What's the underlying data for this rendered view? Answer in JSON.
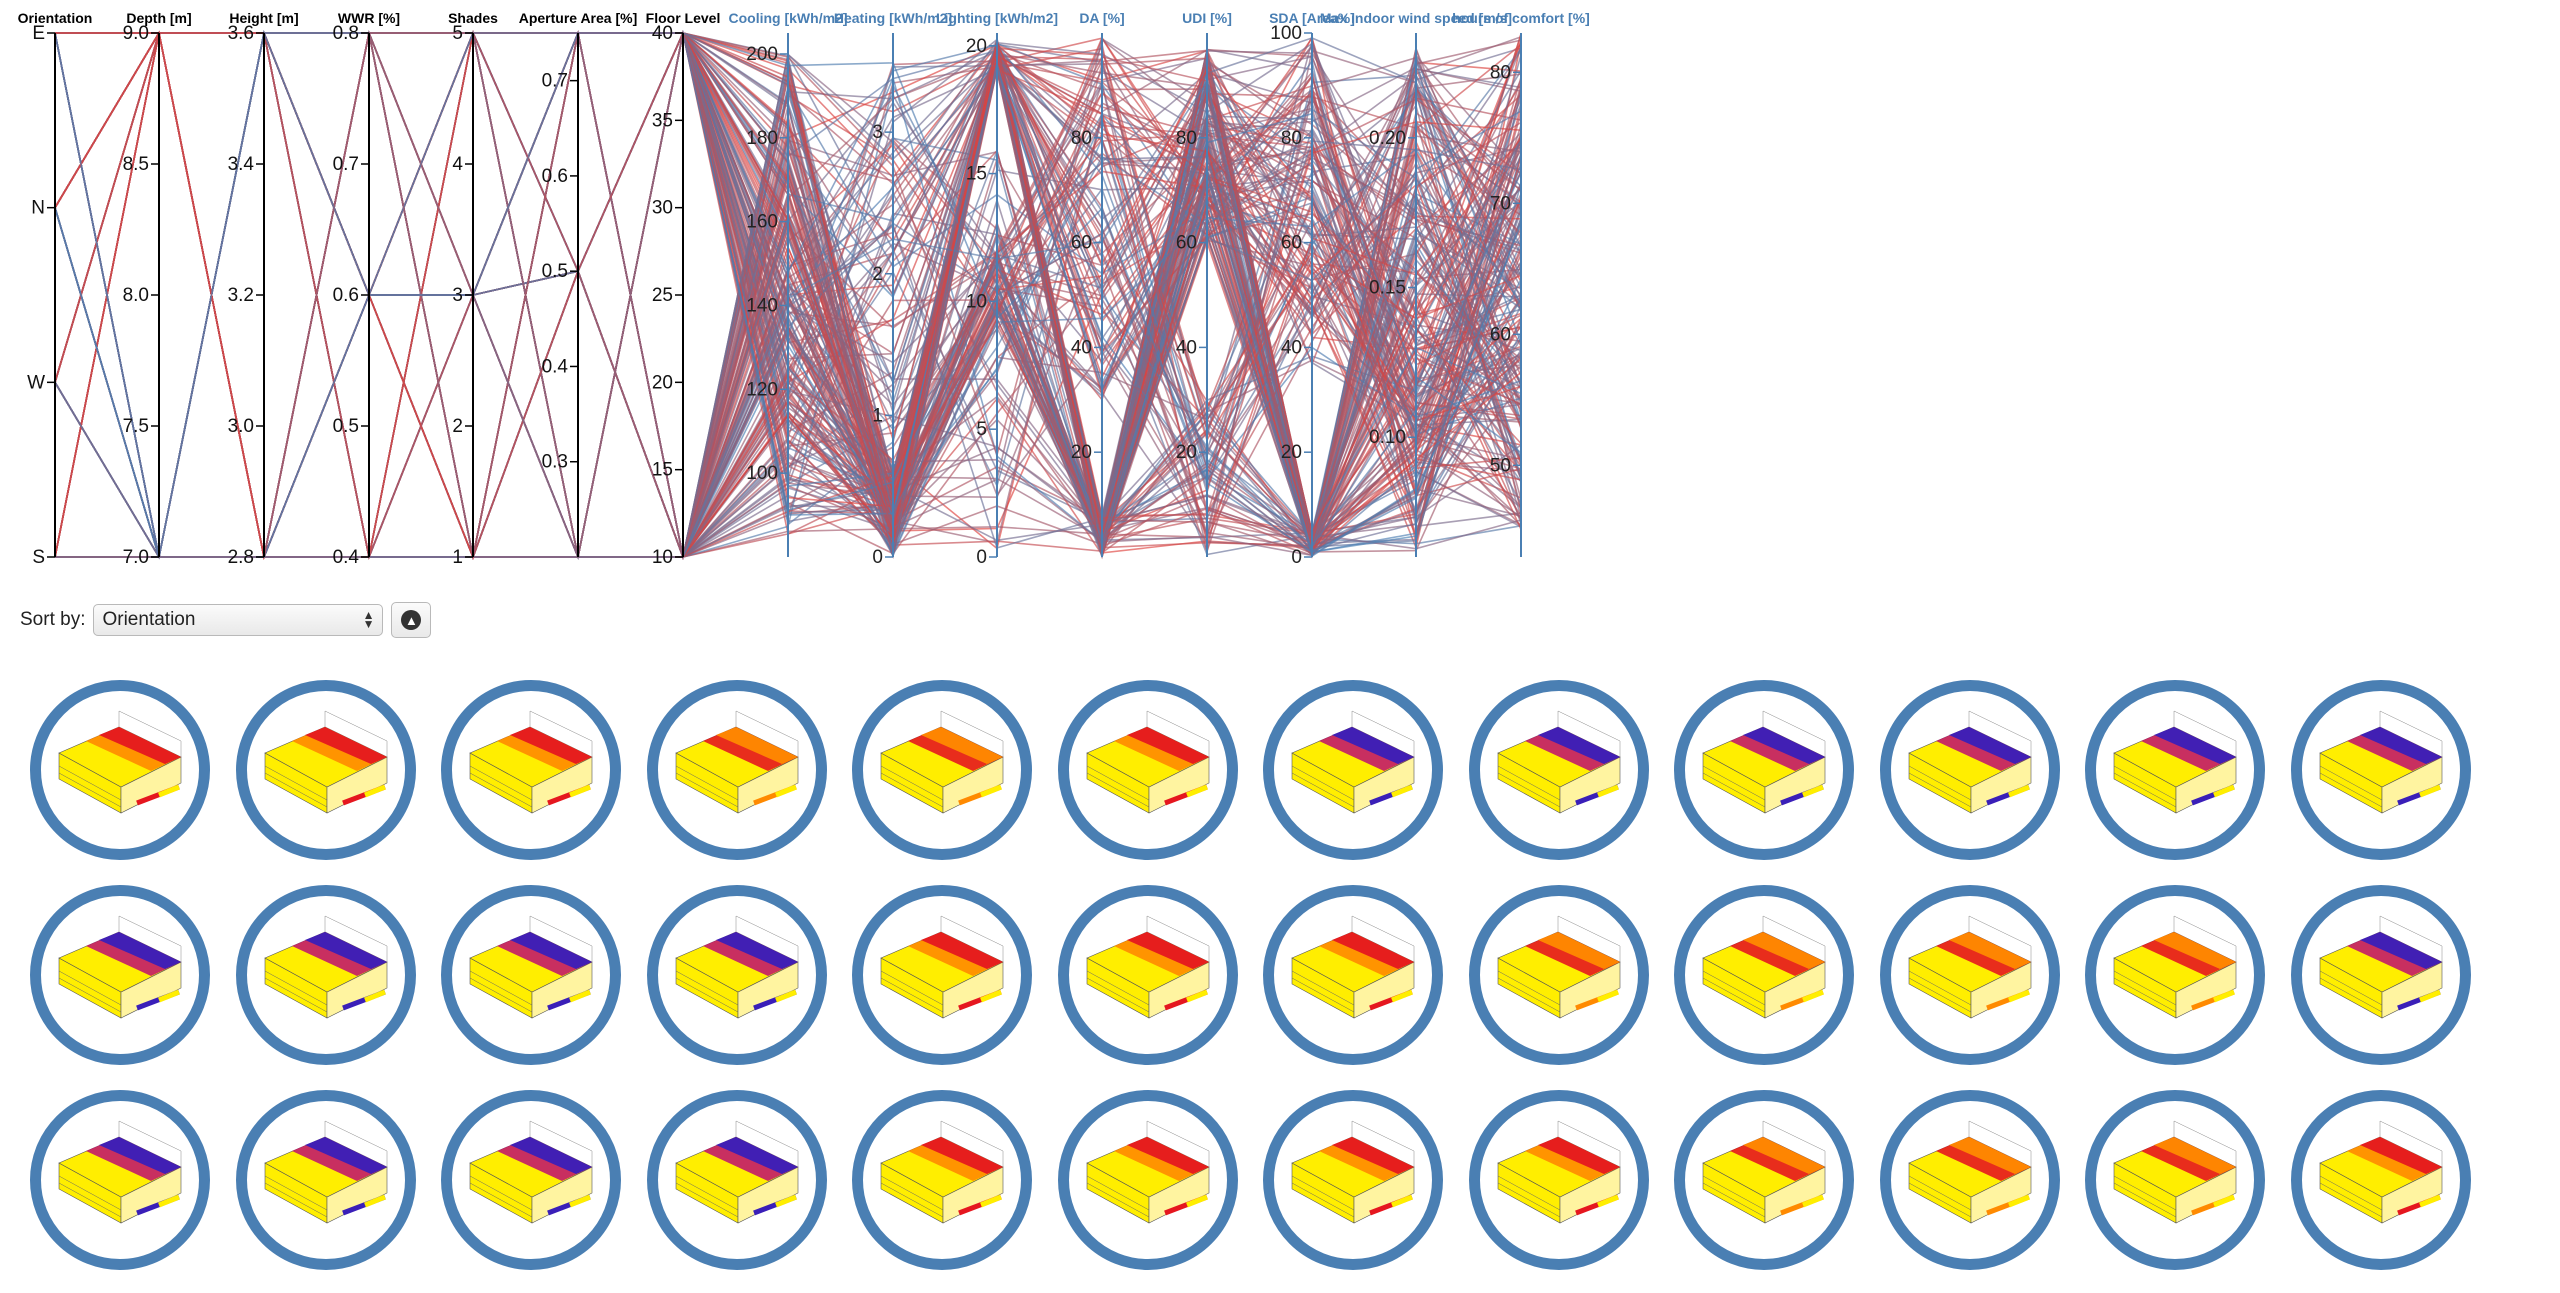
{
  "controls": {
    "sort_label": "Sort by:",
    "sort_value": "Orientation",
    "sort_icon": "arrow-up-circle-icon"
  },
  "colors": {
    "low": "#4a7fb3",
    "high": "#e0413c",
    "mid": "#a6596a",
    "axis_dim": "#000000",
    "axis_out": "#4a7fb3",
    "thumb_ring": "#4a7fb3"
  },
  "thumbnails": {
    "rows": 3,
    "cols": 12,
    "variants": [
      "red",
      "red",
      "red",
      "yellow",
      "yellow",
      "red",
      "purple",
      "purple",
      "purple",
      "purple",
      "purple",
      "purple",
      "purple",
      "purple",
      "purple",
      "purple",
      "red",
      "red",
      "red",
      "yellow",
      "yellow",
      "yellow",
      "yellow",
      "purple",
      "purple",
      "purple",
      "purple",
      "purple",
      "red",
      "red",
      "red",
      "red",
      "yellow",
      "yellow",
      "yellow",
      "red"
    ]
  },
  "chart_data": {
    "type": "parallel-coordinates",
    "series_count": 250,
    "axes": [
      {
        "name": "Orientation",
        "kind": "input",
        "categorical": true,
        "categories": [
          "S",
          "W",
          "N",
          "E"
        ],
        "ticks": [
          "E",
          "N",
          "W",
          "S"
        ]
      },
      {
        "name": "Depth [m]",
        "kind": "input",
        "range": [
          7.0,
          9.0
        ],
        "levels": [
          7.0,
          9.0
        ],
        "ticks": [
          "9.0",
          "8.5",
          "8.0",
          "7.5",
          "7.0"
        ],
        "tick_values": [
          9.0,
          8.5,
          8.0,
          7.5,
          7.0
        ]
      },
      {
        "name": "Height [m]",
        "kind": "input",
        "range": [
          2.8,
          3.6
        ],
        "levels": [
          2.8,
          3.6
        ],
        "ticks": [
          "3.6",
          "3.4",
          "3.2",
          "3.0",
          "2.8"
        ],
        "tick_values": [
          3.6,
          3.4,
          3.2,
          3.0,
          2.8
        ]
      },
      {
        "name": "WWR [%]",
        "kind": "input",
        "range": [
          0.4,
          0.8
        ],
        "levels": [
          0.4,
          0.6,
          0.8
        ],
        "ticks": [
          "0.8",
          "0.7",
          "0.6",
          "0.5",
          "0.4"
        ],
        "tick_values": [
          0.8,
          0.7,
          0.6,
          0.5,
          0.4
        ]
      },
      {
        "name": "Shades",
        "kind": "input",
        "range": [
          1,
          5
        ],
        "levels": [
          1,
          3,
          5
        ],
        "ticks": [
          "5",
          "4",
          "3",
          "2",
          "1"
        ],
        "tick_values": [
          5,
          4,
          3,
          2,
          1
        ]
      },
      {
        "name": "Aperture Area [%]",
        "kind": "input",
        "range": [
          0.2,
          0.75
        ],
        "levels": [
          0.2,
          0.5,
          0.75
        ],
        "ticks": [
          "0.7",
          "0.6",
          "0.5",
          "0.4",
          "0.3"
        ],
        "tick_values": [
          0.7,
          0.6,
          0.5,
          0.4,
          0.3
        ]
      },
      {
        "name": "Floor Level",
        "kind": "input",
        "range": [
          10,
          40
        ],
        "levels": [
          10,
          40
        ],
        "ticks": [
          "40",
          "35",
          "30",
          "25",
          "20",
          "15",
          "10"
        ],
        "tick_values": [
          40,
          35,
          30,
          25,
          20,
          15,
          10
        ]
      },
      {
        "name": "Cooling [kWh/m2]",
        "kind": "output",
        "range": [
          80,
          205
        ],
        "ticks": [
          "200",
          "180",
          "160",
          "140",
          "120",
          "100"
        ],
        "tick_values": [
          200,
          180,
          160,
          140,
          120,
          100
        ]
      },
      {
        "name": "Heating [kWh/m2]",
        "kind": "output",
        "range": [
          0,
          3.7
        ],
        "ticks": [
          "3",
          "2",
          "1",
          "0"
        ],
        "tick_values": [
          3,
          2,
          1,
          0
        ]
      },
      {
        "name": "Lighting [kWh/m2]",
        "kind": "output",
        "range": [
          0,
          20.5
        ],
        "ticks": [
          "20",
          "15",
          "10",
          "5",
          "0"
        ],
        "tick_values": [
          20,
          15,
          10,
          5,
          0
        ]
      },
      {
        "name": "DA [%]",
        "kind": "output",
        "range": [
          0,
          100
        ],
        "ticks": [
          "80",
          "60",
          "40",
          "20"
        ],
        "tick_values": [
          80,
          60,
          40,
          20
        ]
      },
      {
        "name": "UDI [%]",
        "kind": "output",
        "range": [
          0,
          100
        ],
        "ticks": [
          "80",
          "60",
          "40",
          "20"
        ],
        "tick_values": [
          80,
          60,
          40,
          20
        ]
      },
      {
        "name": "SDA [Area%]",
        "kind": "output",
        "range": [
          0,
          100
        ],
        "ticks": [
          "100",
          "80",
          "60",
          "40",
          "20",
          "0"
        ],
        "tick_values": [
          100,
          80,
          60,
          40,
          20,
          0
        ]
      },
      {
        "name": "Max indoor wind speed [m/s]",
        "kind": "output",
        "range": [
          0.06,
          0.235
        ],
        "ticks": [
          "0.20",
          "0.15",
          "0.10"
        ],
        "tick_values": [
          0.2,
          0.15,
          0.1
        ]
      },
      {
        "name": "hours of comfort [%]",
        "kind": "output",
        "range": [
          43,
          83
        ],
        "ticks": [
          "80",
          "70",
          "60",
          "50"
        ],
        "tick_values": [
          80,
          70,
          60,
          50
        ]
      }
    ]
  }
}
